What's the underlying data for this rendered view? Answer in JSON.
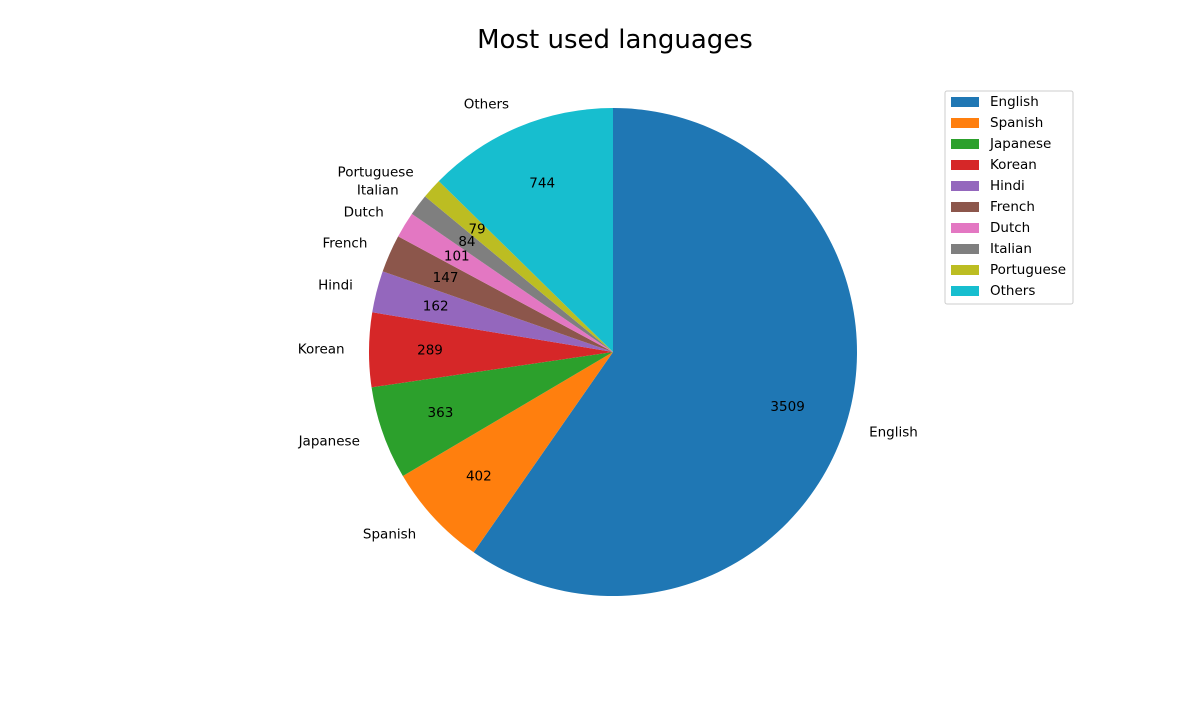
{
  "chart_data": {
    "type": "pie",
    "title": "Most used languages",
    "categories": [
      "English",
      "Spanish",
      "Japanese",
      "Korean",
      "Hindi",
      "French",
      "Dutch",
      "Italian",
      "Portuguese",
      "Others"
    ],
    "values": [
      3509,
      402,
      363,
      289,
      162,
      147,
      101,
      84,
      79,
      744
    ],
    "colors": [
      "#1f77b4",
      "#ff7f0e",
      "#2ca02c",
      "#d62728",
      "#9467bd",
      "#8c564b",
      "#e377c2",
      "#7f7f7f",
      "#bcbd22",
      "#17becf"
    ],
    "start_angle_deg": 90,
    "direction": "clockwise",
    "legend": {
      "position": "top-right",
      "entries": [
        "English",
        "Spanish",
        "Japanese",
        "Korean",
        "Hindi",
        "French",
        "Dutch",
        "Italian",
        "Portuguese",
        "Others"
      ]
    }
  }
}
